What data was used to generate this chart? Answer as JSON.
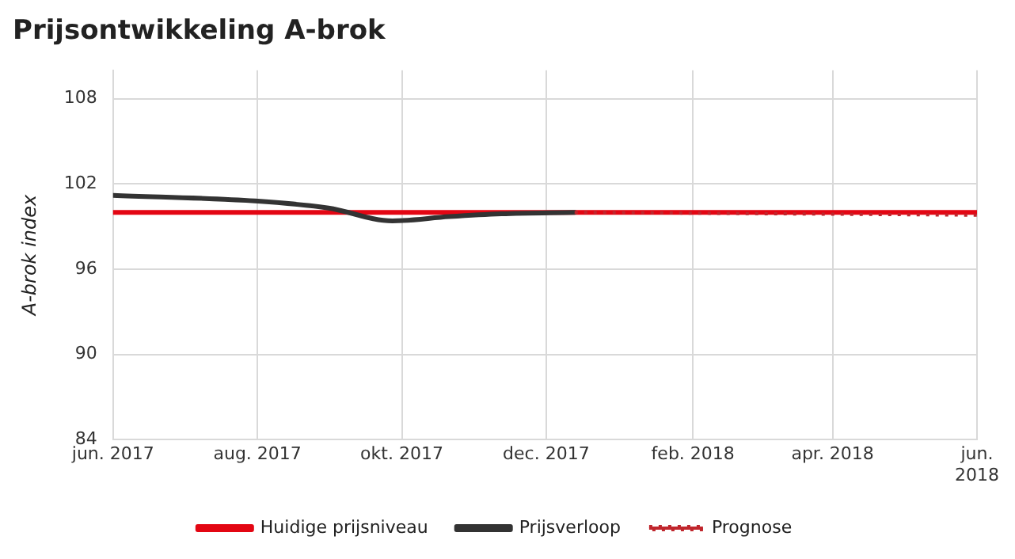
{
  "chart_data": {
    "type": "line",
    "title": "Prijsontwikkeling A-brok",
    "ylabel": "A-brok index",
    "ylim": [
      84,
      110
    ],
    "yticks": [
      84,
      90,
      96,
      102,
      108
    ],
    "xlim": [
      "2017-06-01",
      "2018-06-01"
    ],
    "xticks": [
      {
        "value": "2017-06-01",
        "label": "jun. 2017"
      },
      {
        "value": "2017-08-01",
        "label": "aug. 2017"
      },
      {
        "value": "2017-10-01",
        "label": "okt. 2017"
      },
      {
        "value": "2017-12-01",
        "label": "dec. 2017"
      },
      {
        "value": "2018-02-01",
        "label": "feb. 2018"
      },
      {
        "value": "2018-04-01",
        "label": "apr. 2018"
      },
      {
        "value": "2018-06-01",
        "label": "jun. 2018"
      }
    ],
    "grid": true,
    "legend": "bottom",
    "marker": "none",
    "series": [
      {
        "name": "Huidige prijsniveau",
        "color": "#e30613",
        "line_style": "solid",
        "x": [
          "2017-06-01",
          "2018-06-01"
        ],
        "values": [
          100,
          100
        ]
      },
      {
        "name": "Prijsverloop",
        "color": "#333333",
        "line_style": "solid",
        "x": [
          "2017-06-01",
          "2017-07-31",
          "2017-08-31",
          "2017-09-27",
          "2017-10-21",
          "2017-11-12",
          "2017-12-13"
        ],
        "values": [
          101.2,
          100.8,
          100.3,
          99.4,
          99.7,
          99.9,
          100
        ]
      },
      {
        "name": "Prognose",
        "color": "#c0262d",
        "line_style": "dotted",
        "x": [
          "2017-12-13",
          "2018-06-01"
        ],
        "values": [
          100,
          99.8
        ]
      }
    ]
  }
}
